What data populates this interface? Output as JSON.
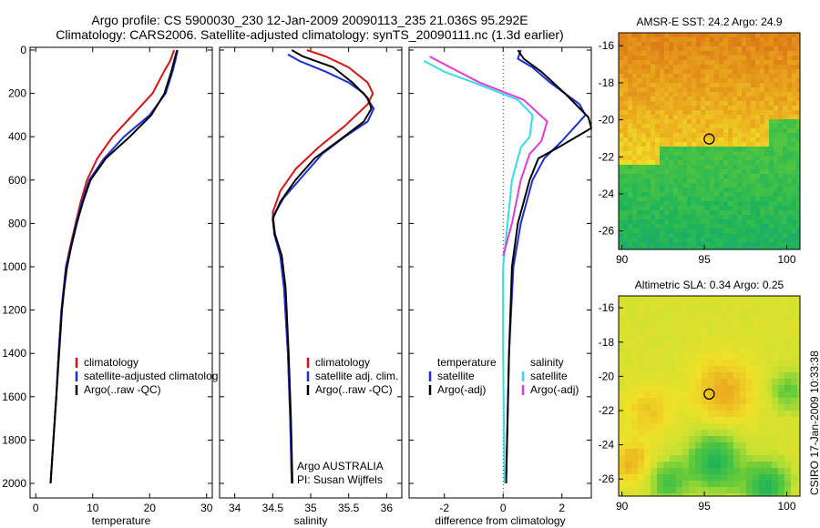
{
  "header": {
    "line1": "Argo profile: CS 5900030_230 12-Jan-2009 20090113_235 21.036S 95.292E",
    "line2": "Climatology: CARS2006. Satellite-adjusted climatology: synTS_20090111.nc (1.3d earlier)"
  },
  "credit": "CSIRO 17-Jan-2009 10:33:38",
  "colors": {
    "climatology": "#dd1111",
    "satellite": "#1a2fd6",
    "argo": "#000000",
    "satellite_salinity": "#33dde8",
    "argo_salinity": "#e23ad8"
  },
  "chart_data": [
    {
      "type": "line",
      "xlabel": "temperature",
      "xlim": [
        -1,
        31
      ],
      "ylim": [
        2060,
        0
      ],
      "xticks": [
        0,
        10,
        20,
        30
      ],
      "yticks": [
        0,
        200,
        400,
        600,
        800,
        1000,
        1200,
        1400,
        1600,
        1800,
        2000
      ],
      "legend": [
        "climatology",
        "satellite-adjusted climatolog",
        "Argo(..raw -QC)"
      ],
      "series": [
        {
          "name": "climatology",
          "color": "#dd1111",
          "points": [
            [
              24.3,
              0
            ],
            [
              23.6,
              50
            ],
            [
              22.5,
              100
            ],
            [
              20.5,
              200
            ],
            [
              17.0,
              300
            ],
            [
              13.5,
              400
            ],
            [
              10.8,
              500
            ],
            [
              9.0,
              600
            ],
            [
              7.9,
              700
            ],
            [
              7.0,
              800
            ],
            [
              6.1,
              900
            ],
            [
              5.3,
              1000
            ],
            [
              4.9,
              1100
            ],
            [
              4.5,
              1200
            ],
            [
              4.0,
              1400
            ],
            [
              3.6,
              1600
            ],
            [
              3.1,
              1800
            ],
            [
              2.6,
              2000
            ]
          ]
        },
        {
          "name": "satellite-adjusted climatolog",
          "color": "#1a2fd6",
          "points": [
            [
              24.9,
              0
            ],
            [
              24.5,
              50
            ],
            [
              24.0,
              100
            ],
            [
              22.8,
              200
            ],
            [
              20.0,
              300
            ],
            [
              15.5,
              400
            ],
            [
              12.0,
              500
            ],
            [
              9.4,
              600
            ],
            [
              8.1,
              700
            ],
            [
              7.1,
              800
            ],
            [
              6.2,
              900
            ],
            [
              5.3,
              1000
            ],
            [
              4.9,
              1100
            ],
            [
              4.5,
              1200
            ],
            [
              4.0,
              1400
            ],
            [
              3.6,
              1600
            ],
            [
              3.1,
              1800
            ],
            [
              2.6,
              2000
            ]
          ]
        },
        {
          "name": "Argo(..raw -QC)",
          "color": "#000000",
          "points": [
            [
              24.8,
              0
            ],
            [
              24.3,
              50
            ],
            [
              23.8,
              100
            ],
            [
              22.6,
              200
            ],
            [
              20.3,
              300
            ],
            [
              16.5,
              400
            ],
            [
              12.3,
              500
            ],
            [
              9.6,
              600
            ],
            [
              8.3,
              700
            ],
            [
              7.2,
              800
            ],
            [
              6.3,
              900
            ],
            [
              5.5,
              1000
            ],
            [
              5.0,
              1100
            ],
            [
              4.6,
              1200
            ],
            [
              4.1,
              1400
            ],
            [
              3.6,
              1600
            ],
            [
              3.1,
              1800
            ],
            [
              2.6,
              2000
            ]
          ]
        }
      ]
    },
    {
      "type": "line",
      "xlabel": "salinity",
      "xlim": [
        33.8,
        36.2
      ],
      "ylim": [
        2060,
        0
      ],
      "xticks": [
        34,
        34.5,
        35,
        35.5,
        36
      ],
      "legend": [
        "climatology",
        "satellite adj. clim.",
        "Argo(..raw -QC)"
      ],
      "annotations": [
        "Argo AUSTRALIA",
        "PI: Susan Wijffels"
      ],
      "series": [
        {
          "name": "climatology",
          "color": "#dd1111",
          "points": [
            [
              34.95,
              0
            ],
            [
              35.2,
              30
            ],
            [
              35.5,
              80
            ],
            [
              35.75,
              150
            ],
            [
              35.82,
              200
            ],
            [
              35.75,
              250
            ],
            [
              35.45,
              350
            ],
            [
              35.1,
              450
            ],
            [
              34.8,
              550
            ],
            [
              34.6,
              650
            ],
            [
              34.5,
              750
            ],
            [
              34.53,
              850
            ],
            [
              34.6,
              950
            ],
            [
              34.65,
              1100
            ],
            [
              34.7,
              1400
            ],
            [
              34.73,
              1700
            ],
            [
              34.75,
              2000
            ]
          ]
        },
        {
          "name": "satellite adj. clim.",
          "color": "#1a2fd6",
          "points": [
            [
              34.7,
              20
            ],
            [
              34.85,
              50
            ],
            [
              35.2,
              100
            ],
            [
              35.5,
              150
            ],
            [
              35.7,
              200
            ],
            [
              35.83,
              270
            ],
            [
              35.75,
              330
            ],
            [
              35.45,
              400
            ],
            [
              35.15,
              480
            ],
            [
              34.9,
              580
            ],
            [
              34.65,
              680
            ],
            [
              34.5,
              770
            ],
            [
              34.52,
              850
            ],
            [
              34.6,
              950
            ],
            [
              34.65,
              1100
            ],
            [
              34.7,
              1400
            ],
            [
              34.73,
              1700
            ],
            [
              34.75,
              2000
            ]
          ]
        },
        {
          "name": "Argo(..raw -QC)",
          "color": "#000000",
          "points": [
            [
              34.75,
              0
            ],
            [
              34.9,
              30
            ],
            [
              35.3,
              80
            ],
            [
              35.55,
              150
            ],
            [
              35.75,
              220
            ],
            [
              35.8,
              270
            ],
            [
              35.7,
              330
            ],
            [
              35.4,
              410
            ],
            [
              35.05,
              500
            ],
            [
              34.8,
              600
            ],
            [
              34.6,
              700
            ],
            [
              34.5,
              780
            ],
            [
              34.53,
              850
            ],
            [
              34.62,
              950
            ],
            [
              34.67,
              1100
            ],
            [
              34.71,
              1400
            ],
            [
              34.74,
              1700
            ],
            [
              34.76,
              2000
            ]
          ]
        }
      ]
    },
    {
      "type": "line",
      "xlabel": "difference from climatology",
      "xlim": [
        -3.2,
        3.0
      ],
      "ylim": [
        2060,
        0
      ],
      "xticks": [
        -2,
        0,
        2
      ],
      "legend_groups": [
        {
          "title": "temperature",
          "items": [
            "satellite",
            "Argo(-adj)"
          ]
        },
        {
          "title": "salinity",
          "items": [
            "satellite",
            "Argo(-adj)"
          ]
        }
      ],
      "series": [
        {
          "name": "satellite",
          "group": "temperature",
          "color": "#1a2fd6",
          "points": [
            [
              0.6,
              0
            ],
            [
              0.5,
              40
            ],
            [
              1.0,
              80
            ],
            [
              1.6,
              150
            ],
            [
              2.6,
              250
            ],
            [
              2.8,
              300
            ],
            [
              2.0,
              420
            ],
            [
              1.4,
              500
            ],
            [
              1.0,
              600
            ],
            [
              0.6,
              800
            ],
            [
              0.35,
              1000
            ],
            [
              0.2,
              1400
            ],
            [
              0.1,
              2000
            ]
          ]
        },
        {
          "name": "Argo(-adj)",
          "group": "temperature",
          "color": "#000000",
          "points": [
            [
              0.5,
              0
            ],
            [
              0.7,
              40
            ],
            [
              1.3,
              100
            ],
            [
              2.1,
              200
            ],
            [
              2.9,
              310
            ],
            [
              3.0,
              360
            ],
            [
              2.0,
              440
            ],
            [
              1.2,
              500
            ],
            [
              0.9,
              600
            ],
            [
              0.5,
              800
            ],
            [
              0.3,
              1000
            ],
            [
              0.2,
              1400
            ],
            [
              0.1,
              2000
            ]
          ]
        },
        {
          "name": "satellite",
          "group": "salinity",
          "color": "#33dde8",
          "points": [
            [
              -2.7,
              50
            ],
            [
              -2.0,
              100
            ],
            [
              -1.0,
              150
            ],
            [
              0.5,
              230
            ],
            [
              1.0,
              300
            ],
            [
              0.9,
              400
            ],
            [
              0.6,
              450
            ],
            [
              0.3,
              600
            ],
            [
              0.15,
              800
            ],
            [
              0.0,
              1000
            ],
            [
              0.0,
              1400
            ],
            [
              0.05,
              2000
            ]
          ]
        },
        {
          "name": "Argo(-adj)",
          "group": "salinity",
          "color": "#e23ad8",
          "points": [
            [
              -2.5,
              30
            ],
            [
              -1.8,
              80
            ],
            [
              -0.8,
              150
            ],
            [
              0.7,
              230
            ],
            [
              1.5,
              330
            ],
            [
              1.3,
              420
            ],
            [
              0.9,
              480
            ],
            [
              0.6,
              600
            ],
            [
              0.3,
              800
            ],
            [
              0.0,
              950
            ]
          ]
        }
      ]
    },
    {
      "type": "heatmap",
      "title": "AMSR-E SST: 24.2 Argo: 24.9",
      "xlim": [
        89.8,
        100.8
      ],
      "ylim": [
        -27,
        -15.3
      ],
      "xticks": [
        90,
        95,
        100
      ],
      "yticks": [
        -16,
        -18,
        -20,
        -22,
        -24,
        -26
      ],
      "argo_position": {
        "lon": 95.292,
        "lat": -21.036
      }
    },
    {
      "type": "heatmap",
      "title": "Altimetric SLA: 0.34 Argo: 0.25",
      "xlim": [
        89.8,
        100.8
      ],
      "ylim": [
        -27,
        -15.3
      ],
      "xticks": [
        90,
        95,
        100
      ],
      "yticks": [
        -16,
        -18,
        -20,
        -22,
        -24,
        -26
      ],
      "argo_position": {
        "lon": 95.292,
        "lat": -21.036
      }
    }
  ]
}
